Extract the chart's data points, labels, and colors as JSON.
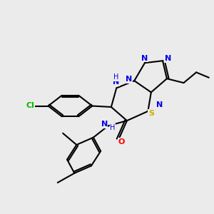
{
  "background_color": "#ebebeb",
  "bond_color": "#000000",
  "atom_colors": {
    "N": "#0000ee",
    "S": "#ccaa00",
    "O": "#ff0000",
    "Cl": "#00bb00",
    "C": "#000000",
    "H": "#000000"
  },
  "figsize": [
    3.0,
    3.0
  ],
  "dpi": 100
}
